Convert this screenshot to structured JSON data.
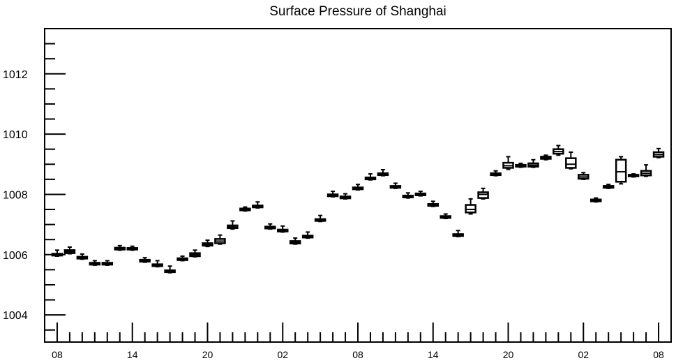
{
  "chart_data": {
    "type": "box",
    "title": "Surface Pressure of Shanghai",
    "xlabel": "",
    "ylabel": "",
    "ylim": [
      1003.1,
      1013.5
    ],
    "y_ticks": [
      1004,
      1006,
      1008,
      1010,
      1012
    ],
    "x_ticks": [
      "08",
      "14",
      "20",
      "02",
      "08",
      "14",
      "20",
      "02",
      "08"
    ],
    "x_tick_hours": [
      0,
      6,
      12,
      18,
      24,
      30,
      36,
      42,
      48
    ],
    "x_range_hours": [
      -1,
      49
    ],
    "grid": false,
    "boxes": [
      {
        "hour": 0,
        "min": 1005.95,
        "q1": 1005.97,
        "median": 1006.0,
        "q3": 1006.03,
        "max": 1006.15
      },
      {
        "hour": 1,
        "min": 1006.03,
        "q1": 1006.05,
        "median": 1006.1,
        "q3": 1006.15,
        "max": 1006.25
      },
      {
        "hour": 2,
        "min": 1005.85,
        "q1": 1005.87,
        "median": 1005.9,
        "q3": 1005.93,
        "max": 1006.02
      },
      {
        "hour": 3,
        "min": 1005.65,
        "q1": 1005.67,
        "median": 1005.7,
        "q3": 1005.73,
        "max": 1005.8
      },
      {
        "hour": 4,
        "min": 1005.65,
        "q1": 1005.67,
        "median": 1005.7,
        "q3": 1005.73,
        "max": 1005.8
      },
      {
        "hour": 5,
        "min": 1006.15,
        "q1": 1006.17,
        "median": 1006.2,
        "q3": 1006.23,
        "max": 1006.3
      },
      {
        "hour": 6,
        "min": 1006.15,
        "q1": 1006.17,
        "median": 1006.2,
        "q3": 1006.22,
        "max": 1006.28
      },
      {
        "hour": 7,
        "min": 1005.75,
        "q1": 1005.77,
        "median": 1005.8,
        "q3": 1005.83,
        "max": 1005.9
      },
      {
        "hour": 8,
        "min": 1005.6,
        "q1": 1005.62,
        "median": 1005.65,
        "q3": 1005.68,
        "max": 1005.8
      },
      {
        "hour": 9,
        "min": 1005.4,
        "q1": 1005.42,
        "median": 1005.45,
        "q3": 1005.48,
        "max": 1005.62
      },
      {
        "hour": 10,
        "min": 1005.8,
        "q1": 1005.82,
        "median": 1005.85,
        "q3": 1005.88,
        "max": 1005.95
      },
      {
        "hour": 11,
        "min": 1005.93,
        "q1": 1005.95,
        "median": 1006.0,
        "q3": 1006.05,
        "max": 1006.15
      },
      {
        "hour": 12,
        "min": 1006.27,
        "q1": 1006.3,
        "median": 1006.33,
        "q3": 1006.38,
        "max": 1006.48
      },
      {
        "hour": 13,
        "min": 1006.35,
        "q1": 1006.38,
        "median": 1006.45,
        "q3": 1006.52,
        "max": 1006.65
      },
      {
        "hour": 14,
        "min": 1006.85,
        "q1": 1006.88,
        "median": 1006.92,
        "q3": 1006.97,
        "max": 1007.12
      },
      {
        "hour": 15,
        "min": 1007.45,
        "q1": 1007.47,
        "median": 1007.5,
        "q3": 1007.53,
        "max": 1007.58
      },
      {
        "hour": 16,
        "min": 1007.55,
        "q1": 1007.57,
        "median": 1007.6,
        "q3": 1007.63,
        "max": 1007.75
      },
      {
        "hour": 17,
        "min": 1006.85,
        "q1": 1006.87,
        "median": 1006.9,
        "q3": 1006.93,
        "max": 1007.02
      },
      {
        "hour": 18,
        "min": 1006.75,
        "q1": 1006.77,
        "median": 1006.8,
        "q3": 1006.83,
        "max": 1006.95
      },
      {
        "hour": 19,
        "min": 1006.35,
        "q1": 1006.37,
        "median": 1006.4,
        "q3": 1006.45,
        "max": 1006.55
      },
      {
        "hour": 20,
        "min": 1006.55,
        "q1": 1006.57,
        "median": 1006.6,
        "q3": 1006.63,
        "max": 1006.75
      },
      {
        "hour": 21,
        "min": 1007.1,
        "q1": 1007.12,
        "median": 1007.15,
        "q3": 1007.18,
        "max": 1007.3
      },
      {
        "hour": 22,
        "min": 1007.92,
        "q1": 1007.94,
        "median": 1007.97,
        "q3": 1008.0,
        "max": 1008.1
      },
      {
        "hour": 23,
        "min": 1007.85,
        "q1": 1007.87,
        "median": 1007.9,
        "q3": 1007.93,
        "max": 1008.02
      },
      {
        "hour": 24,
        "min": 1008.15,
        "q1": 1008.17,
        "median": 1008.2,
        "q3": 1008.23,
        "max": 1008.33
      },
      {
        "hour": 25,
        "min": 1008.48,
        "q1": 1008.5,
        "median": 1008.53,
        "q3": 1008.56,
        "max": 1008.68
      },
      {
        "hour": 26,
        "min": 1008.62,
        "q1": 1008.64,
        "median": 1008.67,
        "q3": 1008.7,
        "max": 1008.82
      },
      {
        "hour": 27,
        "min": 1008.2,
        "q1": 1008.22,
        "median": 1008.25,
        "q3": 1008.28,
        "max": 1008.37
      },
      {
        "hour": 28,
        "min": 1007.88,
        "q1": 1007.9,
        "median": 1007.93,
        "q3": 1007.96,
        "max": 1008.05
      },
      {
        "hour": 29,
        "min": 1007.95,
        "q1": 1007.97,
        "median": 1008.0,
        "q3": 1008.03,
        "max": 1008.1
      },
      {
        "hour": 30,
        "min": 1007.6,
        "q1": 1007.62,
        "median": 1007.65,
        "q3": 1007.68,
        "max": 1007.77
      },
      {
        "hour": 31,
        "min": 1007.2,
        "q1": 1007.22,
        "median": 1007.25,
        "q3": 1007.28,
        "max": 1007.35
      },
      {
        "hour": 32,
        "min": 1006.6,
        "q1": 1006.62,
        "median": 1006.65,
        "q3": 1006.68,
        "max": 1006.8
      },
      {
        "hour": 33,
        "min": 1007.35,
        "q1": 1007.4,
        "median": 1007.5,
        "q3": 1007.65,
        "max": 1007.85
      },
      {
        "hour": 34,
        "min": 1007.85,
        "q1": 1007.88,
        "median": 1008.0,
        "q3": 1008.07,
        "max": 1008.2
      },
      {
        "hour": 35,
        "min": 1008.62,
        "q1": 1008.64,
        "median": 1008.67,
        "q3": 1008.7,
        "max": 1008.78
      },
      {
        "hour": 36,
        "min": 1008.83,
        "q1": 1008.88,
        "median": 1008.95,
        "q3": 1009.05,
        "max": 1009.25
      },
      {
        "hour": 37,
        "min": 1008.9,
        "q1": 1008.92,
        "median": 1008.95,
        "q3": 1008.98,
        "max": 1009.03
      },
      {
        "hour": 38,
        "min": 1008.9,
        "q1": 1008.92,
        "median": 1008.97,
        "q3": 1009.03,
        "max": 1009.15
      },
      {
        "hour": 39,
        "min": 1009.15,
        "q1": 1009.18,
        "median": 1009.22,
        "q3": 1009.25,
        "max": 1009.3
      },
      {
        "hour": 40,
        "min": 1009.3,
        "q1": 1009.35,
        "median": 1009.42,
        "q3": 1009.5,
        "max": 1009.62
      },
      {
        "hour": 41,
        "min": 1008.85,
        "q1": 1008.88,
        "median": 1009.0,
        "q3": 1009.2,
        "max": 1009.4
      },
      {
        "hour": 42,
        "min": 1008.5,
        "q1": 1008.52,
        "median": 1008.58,
        "q3": 1008.65,
        "max": 1008.72
      },
      {
        "hour": 43,
        "min": 1007.75,
        "q1": 1007.77,
        "median": 1007.8,
        "q3": 1007.83,
        "max": 1007.88
      },
      {
        "hour": 44,
        "min": 1008.2,
        "q1": 1008.22,
        "median": 1008.25,
        "q3": 1008.28,
        "max": 1008.33
      },
      {
        "hour": 45,
        "min": 1008.35,
        "q1": 1008.42,
        "median": 1008.75,
        "q3": 1009.15,
        "max": 1009.25
      },
      {
        "hour": 46,
        "min": 1008.58,
        "q1": 1008.6,
        "median": 1008.62,
        "q3": 1008.65,
        "max": 1008.68
      },
      {
        "hour": 47,
        "min": 1008.6,
        "q1": 1008.63,
        "median": 1008.7,
        "q3": 1008.78,
        "max": 1008.98
      },
      {
        "hour": 48,
        "min": 1009.22,
        "q1": 1009.25,
        "median": 1009.32,
        "q3": 1009.4,
        "max": 1009.52
      }
    ]
  }
}
